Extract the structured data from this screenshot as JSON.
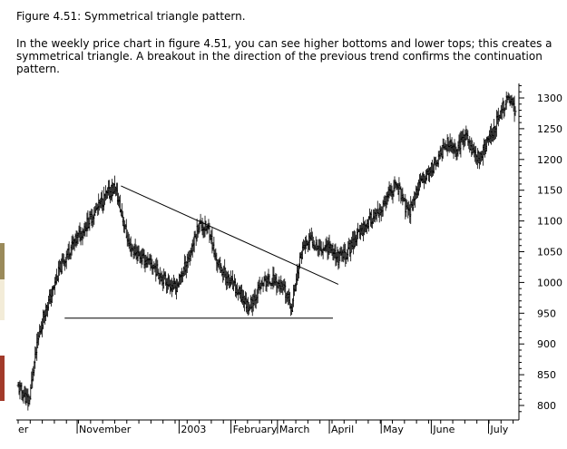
{
  "figure_title": "Figure 4.51: Symmetrical triangle pattern.",
  "description": "In the weekly price chart in figure 4.51, you can see higher bottoms and lower tops; this creates a symmetrical triangle. A breakout in the direction of the previous trend confirms the continuation pattern.",
  "colors": {
    "bars": "#000000",
    "axis": "#000000",
    "background": "#ffffff",
    "strip_top": "#9a8a5a",
    "strip_mid": "#f3ecd8",
    "strip_bottom": "#a23a2a"
  },
  "chart_data": {
    "type": "ohlc",
    "title": "",
    "xlabel": "",
    "ylabel": "",
    "y_axis_side": "right",
    "ylim": [
      775,
      1325
    ],
    "y_ticks": [
      800,
      850,
      900,
      950,
      1000,
      1050,
      1100,
      1150,
      1200,
      1250,
      1300
    ],
    "x_labels": [
      "er",
      "November",
      "2003",
      "February",
      "March",
      "April",
      "May",
      "June",
      "July"
    ],
    "close_path": [
      [
        0,
        830
      ],
      [
        12,
        805
      ],
      [
        16,
        850
      ],
      [
        22,
        905
      ],
      [
        30,
        955
      ],
      [
        36,
        975
      ],
      [
        46,
        1020
      ],
      [
        58,
        1055
      ],
      [
        72,
        1085
      ],
      [
        88,
        1120
      ],
      [
        98,
        1140
      ],
      [
        108,
        1155
      ],
      [
        116,
        1110
      ],
      [
        124,
        1060
      ],
      [
        138,
        1040
      ],
      [
        152,
        1025
      ],
      [
        164,
        1005
      ],
      [
        176,
        990
      ],
      [
        192,
        1045
      ],
      [
        202,
        1095
      ],
      [
        214,
        1085
      ],
      [
        220,
        1040
      ],
      [
        232,
        1010
      ],
      [
        248,
        980
      ],
      [
        258,
        960
      ],
      [
        264,
        975
      ],
      [
        274,
        1000
      ],
      [
        286,
        1005
      ],
      [
        298,
        985
      ],
      [
        306,
        960
      ],
      [
        310,
        1000
      ],
      [
        318,
        1055
      ],
      [
        328,
        1070
      ],
      [
        338,
        1055
      ],
      [
        348,
        1060
      ],
      [
        358,
        1040
      ],
      [
        366,
        1045
      ],
      [
        376,
        1070
      ],
      [
        386,
        1090
      ],
      [
        396,
        1105
      ],
      [
        404,
        1110
      ],
      [
        414,
        1140
      ],
      [
        424,
        1160
      ],
      [
        436,
        1110
      ],
      [
        446,
        1150
      ],
      [
        456,
        1175
      ],
      [
        468,
        1195
      ],
      [
        478,
        1225
      ],
      [
        490,
        1215
      ],
      [
        500,
        1240
      ],
      [
        508,
        1215
      ],
      [
        516,
        1200
      ],
      [
        524,
        1225
      ],
      [
        532,
        1250
      ],
      [
        542,
        1285
      ],
      [
        550,
        1300
      ],
      [
        556,
        1275
      ]
    ],
    "annotations": [
      {
        "type": "trendline",
        "label": "lower tops",
        "from": {
          "bar": 115,
          "value": 1157
        },
        "to": {
          "bar": 358,
          "value": 997
        }
      },
      {
        "type": "support",
        "label": "higher bottoms",
        "value": 942,
        "from_bar": 52,
        "to_bar": 352
      }
    ]
  }
}
